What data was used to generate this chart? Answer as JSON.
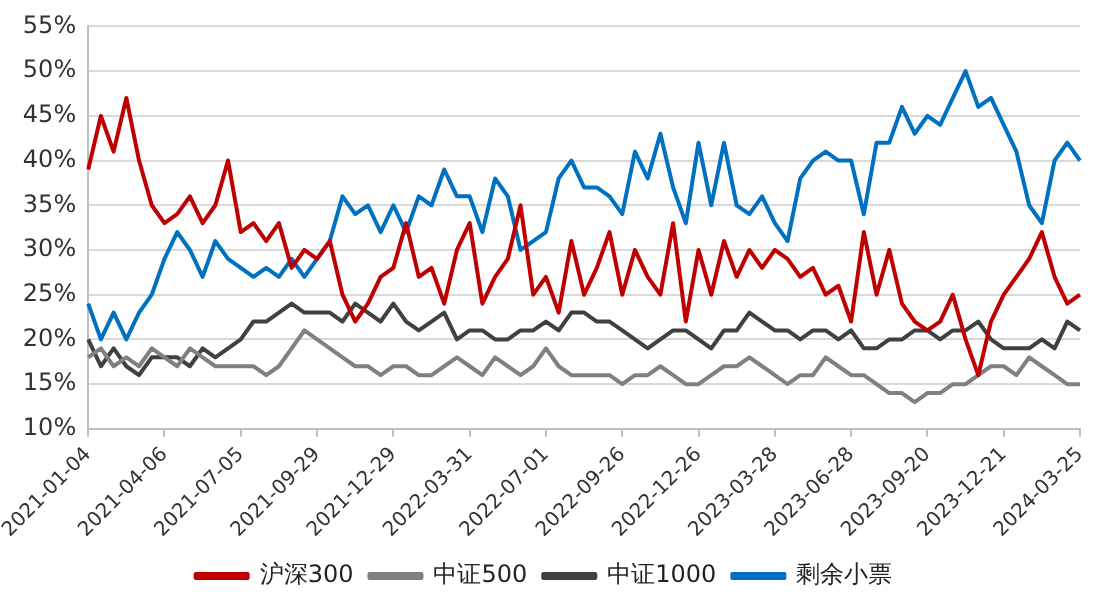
{
  "chart_data": {
    "type": "line",
    "categories": [
      "2021-01-04",
      null,
      null,
      null,
      null,
      null,
      "2021-04-06",
      null,
      null,
      null,
      null,
      null,
      "2021-07-05",
      null,
      null,
      null,
      null,
      null,
      "2021-09-29",
      null,
      null,
      null,
      null,
      null,
      "2021-12-29",
      null,
      null,
      null,
      null,
      null,
      "2022-03-31",
      null,
      null,
      null,
      null,
      null,
      "2022-07-01",
      null,
      null,
      null,
      null,
      null,
      "2022-09-26",
      null,
      null,
      null,
      null,
      null,
      "2022-12-26",
      null,
      null,
      null,
      null,
      null,
      "2023-03-28",
      null,
      null,
      null,
      null,
      null,
      "2023-06-28",
      null,
      null,
      null,
      null,
      null,
      "2023-09-20",
      null,
      null,
      null,
      null,
      null,
      "2023-12-21",
      null,
      null,
      null,
      null,
      null,
      "2024-03-25"
    ],
    "series": [
      {
        "name": "沪深300",
        "color": "#c00000",
        "values": [
          39,
          45,
          41,
          47,
          40,
          35,
          33,
          34,
          36,
          33,
          35,
          40,
          32,
          33,
          31,
          33,
          28,
          30,
          29,
          31,
          25,
          22,
          24,
          27,
          28,
          33,
          27,
          28,
          24,
          30,
          33,
          24,
          27,
          29,
          35,
          25,
          27,
          23,
          31,
          25,
          28,
          32,
          25,
          30,
          27,
          25,
          33,
          22,
          30,
          25,
          31,
          27,
          30,
          28,
          30,
          29,
          27,
          28,
          25,
          26,
          22,
          32,
          25,
          30,
          24,
          22,
          21,
          22,
          25,
          20,
          16,
          22,
          25,
          27,
          29,
          32,
          27,
          24,
          25
        ]
      },
      {
        "name": "中证500",
        "color": "#808080",
        "values": [
          18,
          19,
          17,
          18,
          17,
          19,
          18,
          17,
          19,
          18,
          17,
          17,
          17,
          17,
          16,
          17,
          19,
          21,
          20,
          19,
          18,
          17,
          17,
          16,
          17,
          17,
          16,
          16,
          17,
          18,
          17,
          16,
          18,
          17,
          16,
          17,
          19,
          17,
          16,
          16,
          16,
          16,
          15,
          16,
          16,
          17,
          16,
          15,
          15,
          16,
          17,
          17,
          18,
          17,
          16,
          15,
          16,
          16,
          18,
          17,
          16,
          16,
          15,
          14,
          14,
          13,
          14,
          14,
          15,
          15,
          16,
          17,
          17,
          16,
          18,
          17,
          16,
          15,
          15
        ]
      },
      {
        "name": "中证1000",
        "color": "#404040",
        "values": [
          20,
          17,
          19,
          17,
          16,
          18,
          18,
          18,
          17,
          19,
          18,
          19,
          20,
          22,
          22,
          23,
          24,
          23,
          23,
          23,
          22,
          24,
          23,
          22,
          24,
          22,
          21,
          22,
          23,
          20,
          21,
          21,
          20,
          20,
          21,
          21,
          22,
          21,
          23,
          23,
          22,
          22,
          21,
          20,
          19,
          20,
          21,
          21,
          20,
          19,
          21,
          21,
          23,
          22,
          21,
          21,
          20,
          21,
          21,
          20,
          21,
          19,
          19,
          20,
          20,
          21,
          21,
          20,
          21,
          21,
          22,
          20,
          19,
          19,
          19,
          20,
          19,
          22,
          21
        ]
      },
      {
        "name": "剩余小票",
        "color": "#0070c0",
        "values": [
          24,
          20,
          23,
          20,
          23,
          25,
          29,
          32,
          30,
          27,
          31,
          29,
          28,
          27,
          28,
          27,
          29,
          27,
          29,
          31,
          36,
          34,
          35,
          32,
          35,
          32,
          36,
          35,
          39,
          36,
          36,
          32,
          38,
          36,
          30,
          31,
          32,
          38,
          40,
          37,
          37,
          36,
          34,
          41,
          38,
          43,
          37,
          33,
          42,
          35,
          42,
          35,
          34,
          36,
          33,
          31,
          38,
          40,
          41,
          40,
          40,
          34,
          42,
          42,
          46,
          43,
          45,
          44,
          47,
          50,
          46,
          47,
          44,
          41,
          35,
          33,
          40,
          42,
          40
        ]
      }
    ],
    "ylim": [
      10,
      55
    ],
    "yticks": [
      {
        "value": 10,
        "label": "10%"
      },
      {
        "value": 15,
        "label": "15%"
      },
      {
        "value": 20,
        "label": "20%"
      },
      {
        "value": 25,
        "label": "25%"
      },
      {
        "value": 30,
        "label": "30%"
      },
      {
        "value": 35,
        "label": "35%"
      },
      {
        "value": 40,
        "label": "40%"
      },
      {
        "value": 45,
        "label": "45%"
      },
      {
        "value": 50,
        "label": "50%"
      },
      {
        "value": 55,
        "label": "55%"
      }
    ],
    "grid": "y",
    "legend": "bottom",
    "marker": "none",
    "line_style": "solid"
  }
}
